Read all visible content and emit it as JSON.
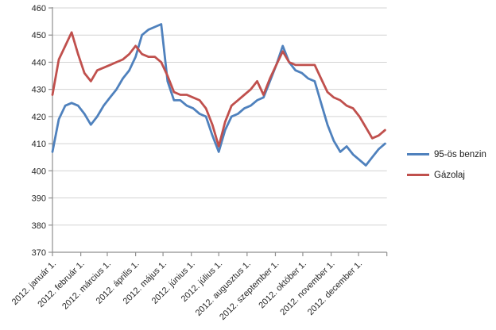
{
  "chart_data": {
    "type": "line",
    "title": "",
    "grid": true,
    "legend_position": "right",
    "y_axis": {
      "min": 370,
      "max": 460,
      "step": 10,
      "tick_labels": [
        "370",
        "380",
        "390",
        "400",
        "410",
        "420",
        "430",
        "440",
        "450",
        "460"
      ]
    },
    "x_axis": {
      "tick_labels": [
        "2012. január 1.",
        "2012. február 1.",
        "2012. március 1.",
        "2012. április 1.",
        "2012. május 1.",
        "2012. június 1.",
        "2012. július 1.",
        "2012. augusztus 1.",
        "2012. szeptember 1.",
        "2012. október 1.",
        "2012. november 1.",
        "2012. december 1."
      ],
      "tick_label_days": [
        0,
        31,
        60,
        91,
        121,
        152,
        182,
        213,
        244,
        274,
        305,
        335
      ],
      "extra_tick_days": [
        366
      ],
      "axis_end_day": 366
    },
    "series": [
      {
        "name": "95-ös benzin",
        "color": "#4F81BD",
        "sample_interval_days": 7,
        "values": [
          407,
          419,
          424,
          425,
          424,
          421,
          417,
          420,
          424,
          427,
          430,
          434,
          437,
          442,
          450,
          452,
          453,
          454,
          433,
          426,
          426,
          424,
          423,
          421,
          420,
          413,
          407,
          415,
          420,
          421,
          423,
          424,
          426,
          427,
          433,
          439,
          446,
          440,
          437,
          436,
          434,
          433,
          425,
          417,
          411,
          407,
          409,
          406,
          404,
          402,
          405,
          408,
          410
        ]
      },
      {
        "name": "Gázolaj",
        "color": "#C0504D",
        "sample_interval_days": 7,
        "values": [
          428,
          441,
          446,
          451,
          443,
          436,
          433,
          437,
          438,
          439,
          440,
          441,
          443,
          446,
          443,
          442,
          442,
          440,
          435,
          429,
          428,
          428,
          427,
          426,
          423,
          417,
          409,
          418,
          424,
          426,
          428,
          430,
          433,
          428,
          434,
          439,
          444,
          440,
          439,
          439,
          439,
          439,
          434,
          429,
          427,
          426,
          424,
          423,
          420,
          416,
          412,
          413,
          415
        ]
      }
    ]
  }
}
